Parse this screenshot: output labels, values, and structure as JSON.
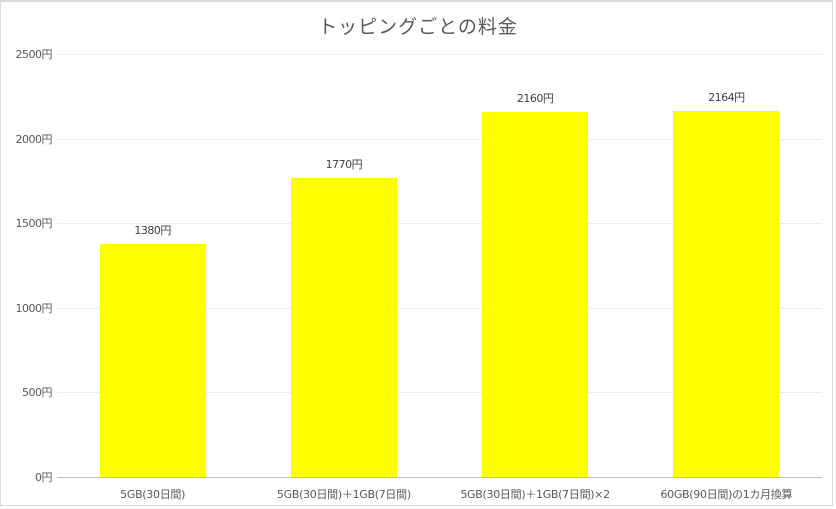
{
  "chart_data": {
    "type": "bar",
    "title": "トッピングごとの料金",
    "xlabel": "",
    "ylabel": "",
    "categories": [
      "5GB(30日間)",
      "5GB(30日間)＋1GB(7日間)",
      "5GB(30日間)＋1GB(7日間)×2",
      "60GB(90日間)の1カ月換算"
    ],
    "values": [
      1380,
      1770,
      2160,
      2164
    ],
    "data_labels": [
      "1380円",
      "1770円",
      "2160円",
      "2164円"
    ],
    "ylim": [
      0,
      2500
    ],
    "yticks": [
      0,
      500,
      1000,
      1500,
      2000,
      2500
    ],
    "ytick_labels": [
      "0円",
      "500円",
      "1000円",
      "1500円",
      "2000円",
      "2500円"
    ],
    "grid": true,
    "legend": null,
    "bar_color": "#ffff00"
  }
}
